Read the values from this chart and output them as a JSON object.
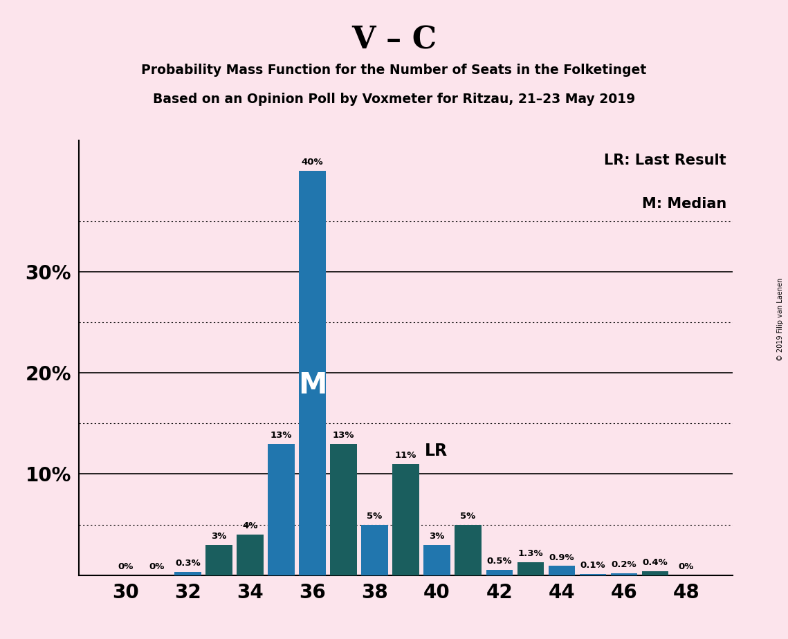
{
  "title": "V – C",
  "subtitle1": "Probability Mass Function for the Number of Seats in the Folketinget",
  "subtitle2": "Based on an Opinion Poll by Voxmeter for Ritzau, 21–23 May 2019",
  "copyright": "© 2019 Filip van Laenen",
  "legend_lr": "LR: Last Result",
  "legend_m": "M: Median",
  "background_color": "#fce4ec",
  "bar_color_blue": "#2176ae",
  "bar_color_teal": "#1a5e5e",
  "median_label": "M",
  "lr_label": "LR",
  "seats": [
    30,
    31,
    32,
    33,
    34,
    35,
    36,
    37,
    38,
    39,
    40,
    41,
    42,
    43,
    44,
    45,
    46,
    47,
    48
  ],
  "values": [
    0.0,
    0.0,
    0.3,
    3.0,
    4.0,
    13.0,
    40.0,
    13.0,
    5.0,
    11.0,
    3.0,
    5.0,
    0.5,
    1.3,
    0.9,
    0.1,
    0.2,
    0.4,
    0.0
  ],
  "colors": [
    "blue",
    "blue",
    "blue",
    "teal",
    "teal",
    "blue",
    "blue",
    "teal",
    "blue",
    "teal",
    "blue",
    "teal",
    "blue",
    "teal",
    "blue",
    "blue",
    "blue",
    "teal",
    "blue"
  ],
  "labels": [
    "0%",
    "0%",
    "0.3%",
    "3%",
    "4%",
    "13%",
    "40%",
    "13%",
    "5%",
    "11%",
    "3%",
    "5%",
    "0.5%",
    "1.3%",
    "0.9%",
    "0.1%",
    "0.2%",
    "0.4%",
    "0%"
  ],
  "median_seat": 36,
  "lr_seat": 39,
  "xlim": [
    28.5,
    49.5
  ],
  "ylim": [
    0,
    43
  ],
  "xticks": [
    30,
    32,
    34,
    36,
    38,
    40,
    42,
    44,
    46,
    48
  ],
  "solid_yticks": [
    10,
    20,
    30
  ],
  "dotted_yticks": [
    5,
    15,
    25,
    35
  ],
  "bar_width": 0.85,
  "label_fontsize": 9.5,
  "ytick_label_positions": [
    10,
    20,
    30
  ],
  "ytick_labels": [
    "10%",
    "20%",
    "30%"
  ]
}
